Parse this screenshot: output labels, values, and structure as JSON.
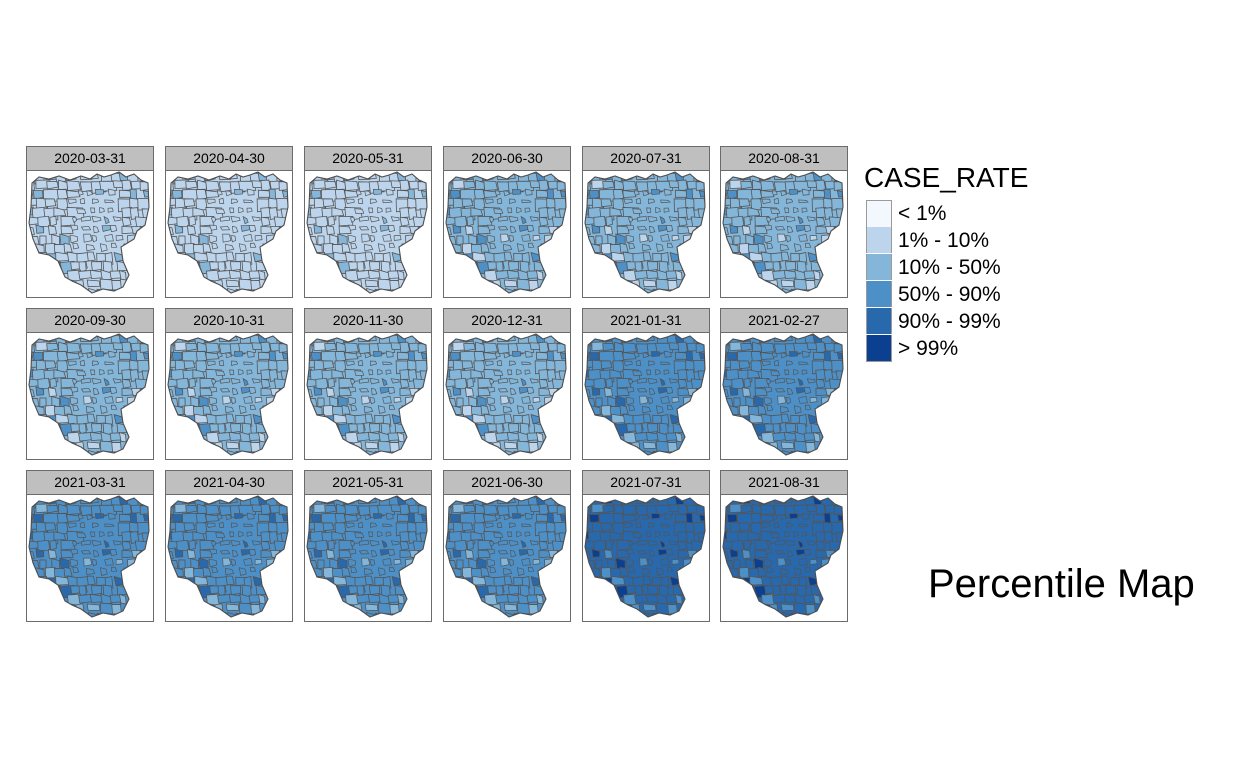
{
  "title": "Percentile Map",
  "legend": {
    "title": "CASE_RATE",
    "classes": [
      {
        "label": "< 1%",
        "color": "#f2f8fd"
      },
      {
        "label": "1% - 10%",
        "color": "#bdd5ec"
      },
      {
        "label": "10% - 50%",
        "color": "#84b6da"
      },
      {
        "label": "50% - 90%",
        "color": "#4d90c7"
      },
      {
        "label": "90% - 99%",
        "color": "#2868ad"
      },
      {
        "label": "> 99%",
        "color": "#0b3f8f"
      }
    ]
  },
  "panels": [
    {
      "date": "2020-03-31",
      "dominant_class": "1% - 10%"
    },
    {
      "date": "2020-04-30",
      "dominant_class": "1% - 10%"
    },
    {
      "date": "2020-05-31",
      "dominant_class": "1% - 10%"
    },
    {
      "date": "2020-06-30",
      "dominant_class": "10% - 50%"
    },
    {
      "date": "2020-07-31",
      "dominant_class": "10% - 50%"
    },
    {
      "date": "2020-08-31",
      "dominant_class": "10% - 50%"
    },
    {
      "date": "2020-09-30",
      "dominant_class": "10% - 50%"
    },
    {
      "date": "2020-10-31",
      "dominant_class": "10% - 50%"
    },
    {
      "date": "2020-11-30",
      "dominant_class": "10% - 50%"
    },
    {
      "date": "2020-12-31",
      "dominant_class": "10% - 50%"
    },
    {
      "date": "2021-01-31",
      "dominant_class": "50% - 90%"
    },
    {
      "date": "2021-02-27",
      "dominant_class": "50% - 90%"
    },
    {
      "date": "2021-03-31",
      "dominant_class": "50% - 90%"
    },
    {
      "date": "2021-04-30",
      "dominant_class": "50% - 90%"
    },
    {
      "date": "2021-05-31",
      "dominant_class": "50% - 90%"
    },
    {
      "date": "2021-06-30",
      "dominant_class": "50% - 90%"
    },
    {
      "date": "2021-07-31",
      "dominant_class": "90% - 99%"
    },
    {
      "date": "2021-08-31",
      "dominant_class": "90% - 99%"
    }
  ]
}
